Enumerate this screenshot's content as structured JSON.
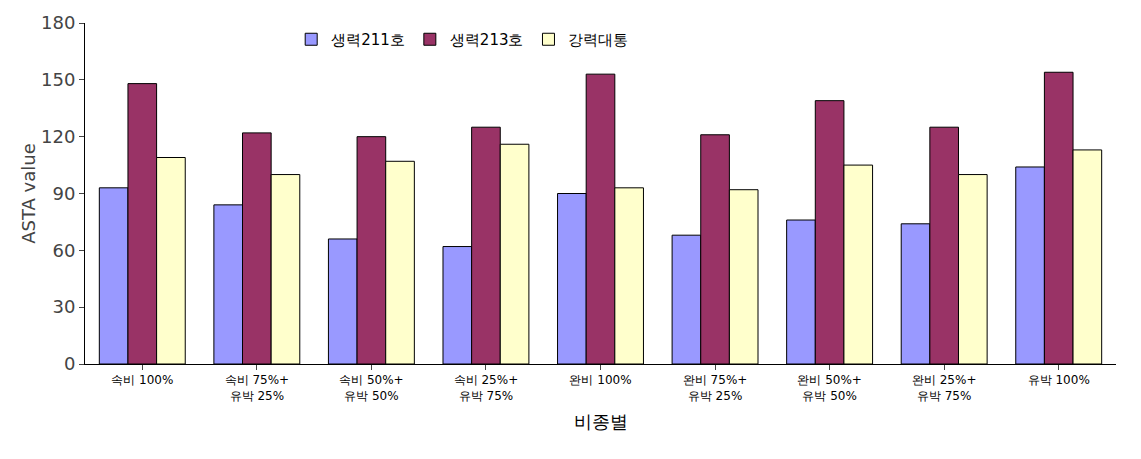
{
  "chart_data": {
    "type": "bar",
    "x_label": "비종별",
    "y_label": "ASTA value",
    "categories": [
      "속비 100%",
      "속비 75%+\n유박 25%",
      "속비 50%+\n유박 50%",
      "속비 25%+\n유박 75%",
      "완비 100%",
      "완비 75%+\n유박 25%",
      "완비 50%+\n유박 50%",
      "완비 25%+\n유박 75%",
      "유박 100%"
    ],
    "series": [
      {
        "name": "생력211호",
        "color": "#9999ff",
        "values": [
          93,
          84,
          66,
          62,
          90,
          68,
          76,
          74,
          104
        ]
      },
      {
        "name": "생력213호",
        "color": "#993366",
        "values": [
          148,
          122,
          120,
          125,
          153,
          121,
          139,
          125,
          154
        ]
      },
      {
        "name": "강력대통",
        "color": "#ffffcc",
        "values": [
          109,
          100,
          107,
          116,
          93,
          92,
          105,
          100,
          113
        ]
      }
    ],
    "ylim": [
      0,
      180
    ],
    "yticks": [
      0,
      30,
      60,
      90,
      120,
      150,
      180
    ],
    "grid": false,
    "legend": "top"
  }
}
